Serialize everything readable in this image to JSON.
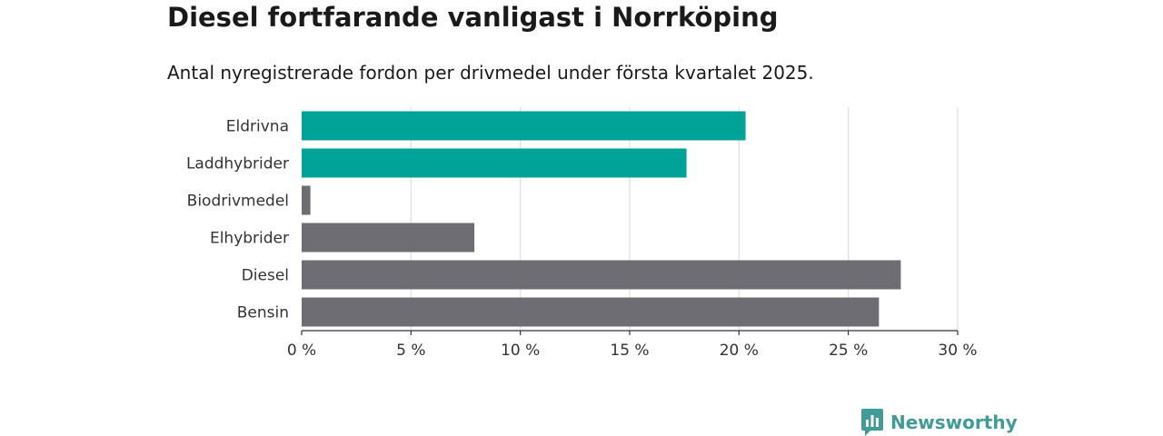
{
  "title": "Diesel fortfarande vanligast i Norrköping",
  "subtitle": "Antal nyregistrerade fordon per drivmedel under första kvartalet 2025.",
  "brand": {
    "name": "Newsworthy",
    "icon": "newsworthy-logo-icon",
    "color": "#3f9c96"
  },
  "chart_data": {
    "type": "bar",
    "orientation": "horizontal",
    "categories": [
      "Eldrivna",
      "Laddhybrider",
      "Biodrivmedel",
      "Elhybrider",
      "Diesel",
      "Bensin"
    ],
    "values": [
      20.3,
      17.6,
      0.4,
      7.9,
      27.4,
      26.4
    ],
    "colors": [
      "#00a398",
      "#00a398",
      "#6e6d73",
      "#6e6d73",
      "#6e6d73",
      "#6e6d73"
    ],
    "xlim": [
      0,
      30
    ],
    "xticks": [
      0,
      5,
      10,
      15,
      20,
      25,
      30
    ],
    "tick_labels": [
      "0 %",
      "5 %",
      "10 %",
      "15 %",
      "20 %",
      "25 %",
      "30 %"
    ],
    "grid": true
  }
}
